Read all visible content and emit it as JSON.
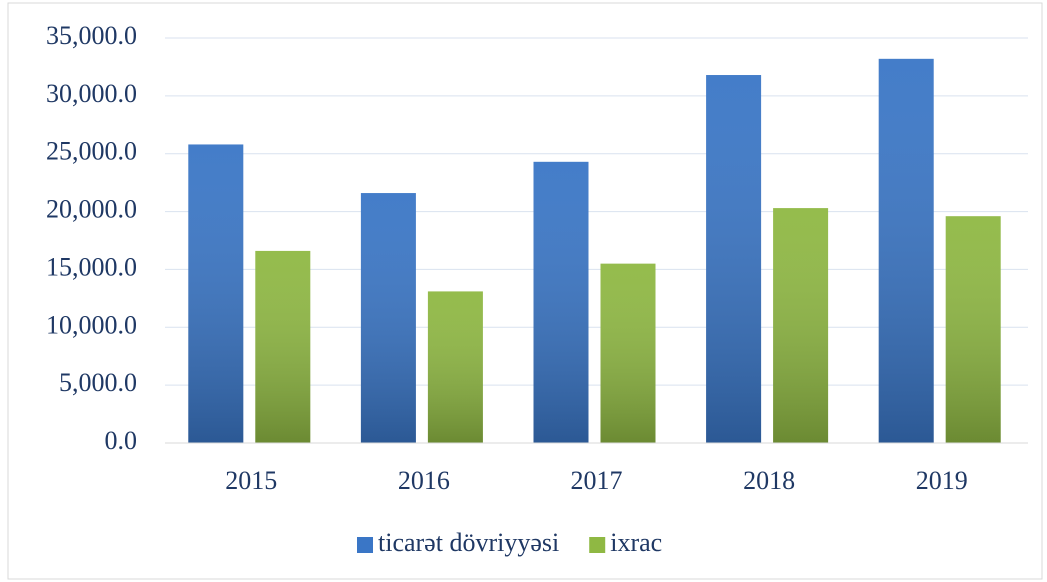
{
  "chart_data": {
    "type": "bar",
    "categories": [
      "2015",
      "2016",
      "2017",
      "2018",
      "2019"
    ],
    "series": [
      {
        "name": "ticarət dövriyyəsi",
        "color": "#3a76c6",
        "values": [
          25800,
          21600,
          24300,
          31800,
          33200
        ]
      },
      {
        "name": "ixrac",
        "color": "#8fb843",
        "values": [
          16600,
          13100,
          15500,
          20300,
          19600
        ]
      }
    ],
    "ylim": [
      0,
      35000
    ],
    "yticks": [
      {
        "value": 0,
        "label": "0.0"
      },
      {
        "value": 5000,
        "label": "5,000.0"
      },
      {
        "value": 10000,
        "label": "10,000.0"
      },
      {
        "value": 15000,
        "label": "15,000.0"
      },
      {
        "value": 20000,
        "label": "20,000.0"
      },
      {
        "value": 25000,
        "label": "25,000.0"
      },
      {
        "value": 30000,
        "label": "30,000.0"
      },
      {
        "value": 35000,
        "label": "35,000.0"
      }
    ],
    "grid": true,
    "legend": "bottom"
  }
}
